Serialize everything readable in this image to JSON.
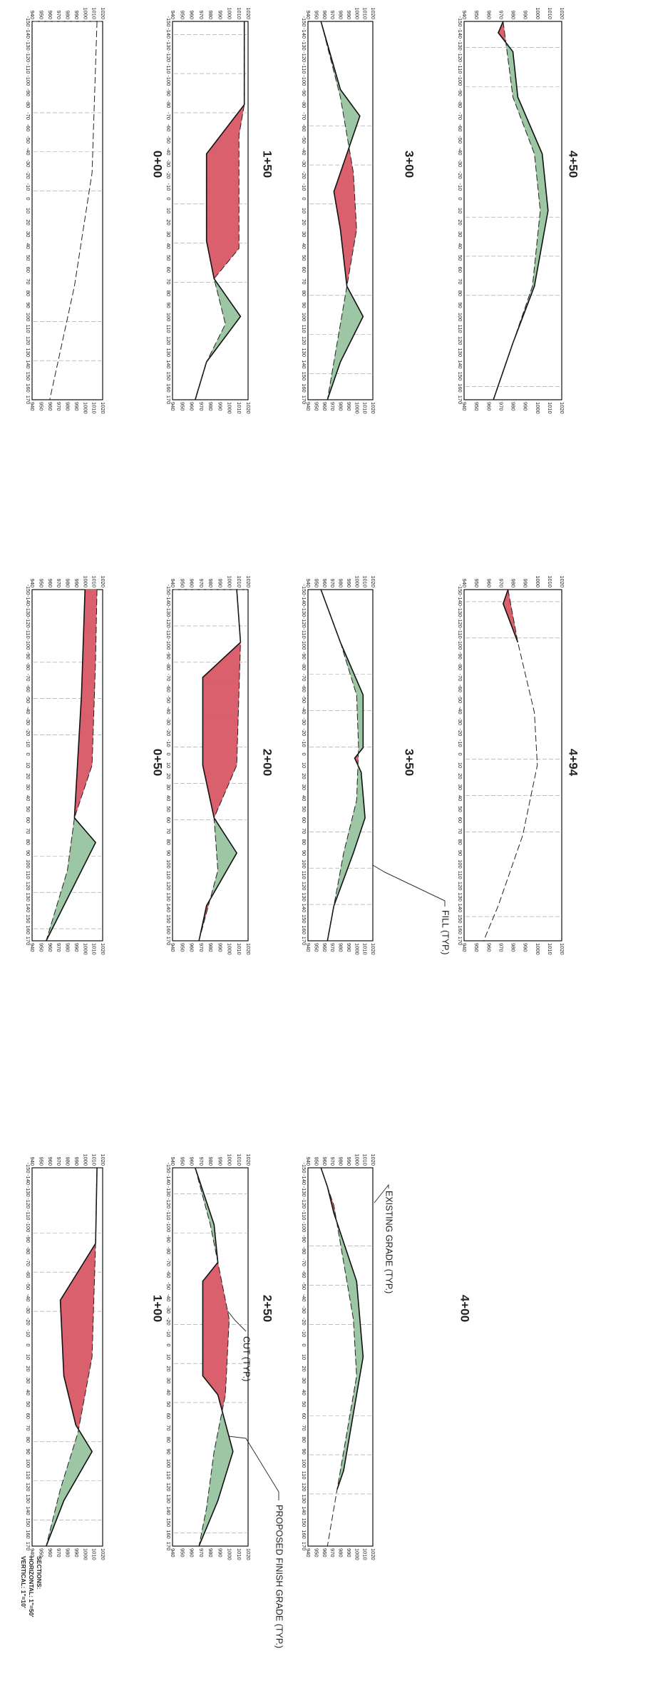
{
  "sheet": {
    "offset_ticks": [
      -150,
      -140,
      -130,
      -120,
      -110,
      -100,
      -90,
      -80,
      -70,
      -60,
      -50,
      -40,
      -30,
      -20,
      -10,
      0,
      10,
      20,
      30,
      40,
      50,
      60,
      70,
      80,
      90,
      100,
      110,
      120,
      130,
      140,
      150,
      160,
      170
    ],
    "elevation_ticks": [
      940,
      950,
      960,
      970,
      980,
      990,
      1000,
      1010,
      1020
    ],
    "panels": [
      {
        "station": "0+00"
      },
      {
        "station": "1+50"
      },
      {
        "station": "3+00"
      },
      {
        "station": "4+50"
      },
      {
        "station": "0+50"
      },
      {
        "station": "2+00"
      },
      {
        "station": "3+50"
      },
      {
        "station": "4+94"
      },
      {
        "station": "1+00"
      },
      {
        "station": "2+50"
      },
      {
        "station": "4+00"
      }
    ],
    "annotations": {
      "fill": "FILL (TYP.)",
      "existing": "EXISTING GRADE (TYP.)",
      "cut": "CUT (TYP.)",
      "proposed": "PROPOSED FINISH GRADE (TYP.)"
    },
    "scale_note": {
      "title": "SECTIONS:",
      "horizontal": "HORIZONTAL: 1\"=50'",
      "vertical": "VERTICAL: 1\"=10'"
    }
  }
}
